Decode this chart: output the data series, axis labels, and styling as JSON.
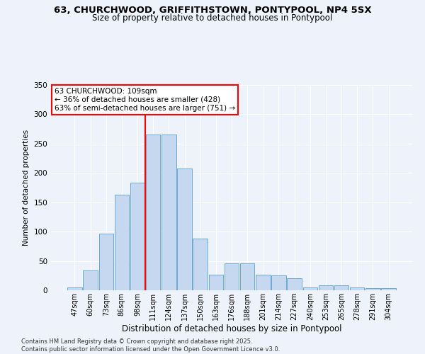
{
  "title_line1": "63, CHURCHWOOD, GRIFFITHSTOWN, PONTYPOOL, NP4 5SX",
  "title_line2": "Size of property relative to detached houses in Pontypool",
  "xlabel": "Distribution of detached houses by size in Pontypool",
  "ylabel": "Number of detached properties",
  "bar_labels": [
    "47sqm",
    "60sqm",
    "73sqm",
    "86sqm",
    "98sqm",
    "111sqm",
    "124sqm",
    "137sqm",
    "150sqm",
    "163sqm",
    "176sqm",
    "188sqm",
    "201sqm",
    "214sqm",
    "227sqm",
    "240sqm",
    "253sqm",
    "265sqm",
    "278sqm",
    "291sqm",
    "304sqm"
  ],
  "bar_values": [
    5,
    34,
    97,
    163,
    183,
    265,
    265,
    208,
    88,
    27,
    46,
    46,
    27,
    25,
    21,
    5,
    8,
    9,
    5,
    4,
    4
  ],
  "bar_color": "#c5d8f0",
  "bar_edge_color": "#6aaad4",
  "vline_index": 5,
  "vline_color": "red",
  "annotation_text": "63 CHURCHWOOD: 109sqm\n← 36% of detached houses are smaller (428)\n63% of semi-detached houses are larger (751) →",
  "ylim": [
    0,
    350
  ],
  "yticks": [
    0,
    50,
    100,
    150,
    200,
    250,
    300,
    350
  ],
  "background_color": "#eef2fb",
  "grid_color": "#ffffff",
  "footnote": "Contains HM Land Registry data © Crown copyright and database right 2025.\nContains public sector information licensed under the Open Government Licence v3.0.",
  "fig_width": 6.0,
  "fig_height": 5.0
}
